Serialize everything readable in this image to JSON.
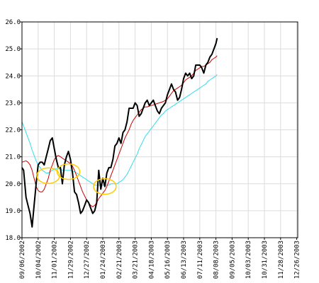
{
  "chart_data": {
    "type": "line",
    "title": "",
    "xlabel": "",
    "ylabel": "",
    "x_ticks": [
      "09/06/2002",
      "10/04/2002",
      "11/01/2002",
      "11/29/2002",
      "12/27/2002",
      "01/24/2003",
      "02/21/2003",
      "03/21/2003",
      "04/18/2003",
      "05/16/2003",
      "06/13/2003",
      "07/11/2003",
      "08/08/2003",
      "09/05/2003",
      "10/03/2003",
      "10/31/2003",
      "11/28/2003",
      "12/26/2003"
    ],
    "y_ticks": [
      18.0,
      19.0,
      20.0,
      21.0,
      22.0,
      23.0,
      24.0,
      25.0,
      26.0
    ],
    "ylim": [
      18.0,
      26.0
    ],
    "grid": true,
    "legend": "none",
    "x_unit": "week index (0 = 09/06/2002, one tick every 4 weeks)",
    "series": [
      {
        "name": "",
        "color": "#000000",
        "points": [
          [
            0,
            20.6
          ],
          [
            0.4,
            20.5
          ],
          [
            1,
            19.5
          ],
          [
            1.5,
            19.2
          ],
          [
            2,
            18.9
          ],
          [
            2.5,
            18.4
          ],
          [
            3,
            19.2
          ],
          [
            3.5,
            20.0
          ],
          [
            4,
            20.7
          ],
          [
            4.5,
            20.8
          ],
          [
            5,
            20.8
          ],
          [
            5.5,
            20.7
          ],
          [
            6,
            21.0
          ],
          [
            6.5,
            21.3
          ],
          [
            7,
            21.6
          ],
          [
            7.5,
            21.7
          ],
          [
            8,
            21.3
          ],
          [
            8.5,
            20.9
          ],
          [
            9,
            20.6
          ],
          [
            9.5,
            20.6
          ],
          [
            10,
            20.0
          ],
          [
            10.5,
            20.7
          ],
          [
            11,
            21.0
          ],
          [
            11.5,
            21.2
          ],
          [
            12,
            20.9
          ],
          [
            12.5,
            20.4
          ],
          [
            13,
            19.7
          ],
          [
            13.5,
            19.6
          ],
          [
            14,
            19.3
          ],
          [
            14.5,
            18.9
          ],
          [
            15,
            19.0
          ],
          [
            15.5,
            19.2
          ],
          [
            16,
            19.4
          ],
          [
            16.5,
            19.3
          ],
          [
            17,
            19.1
          ],
          [
            17.5,
            18.9
          ],
          [
            18,
            19.0
          ],
          [
            18.5,
            19.3
          ],
          [
            19,
            20.5
          ],
          [
            19.5,
            19.8
          ],
          [
            20,
            20.2
          ],
          [
            20.5,
            19.9
          ],
          [
            21,
            20.4
          ],
          [
            21.5,
            20.6
          ],
          [
            22,
            20.6
          ],
          [
            22.5,
            20.9
          ],
          [
            23,
            21.4
          ],
          [
            23.5,
            21.5
          ],
          [
            24,
            21.7
          ],
          [
            24.5,
            21.5
          ],
          [
            25,
            21.9
          ],
          [
            25.5,
            22.0
          ],
          [
            26,
            22.3
          ],
          [
            26.5,
            22.8
          ],
          [
            27,
            22.8
          ],
          [
            27.5,
            22.8
          ],
          [
            28,
            23.0
          ],
          [
            28.5,
            22.9
          ],
          [
            29,
            22.5
          ],
          [
            29.5,
            22.6
          ],
          [
            30,
            22.8
          ],
          [
            30.5,
            23.0
          ],
          [
            31,
            23.1
          ],
          [
            31.5,
            22.9
          ],
          [
            32,
            23.0
          ],
          [
            32.5,
            23.1
          ],
          [
            33,
            22.9
          ],
          [
            33.5,
            22.7
          ],
          [
            34,
            22.6
          ],
          [
            34.5,
            22.8
          ],
          [
            35,
            22.9
          ],
          [
            35.5,
            23.0
          ],
          [
            36,
            23.3
          ],
          [
            36.5,
            23.5
          ],
          [
            37,
            23.7
          ],
          [
            37.5,
            23.5
          ],
          [
            38,
            23.4
          ],
          [
            38.5,
            23.1
          ],
          [
            39,
            23.2
          ],
          [
            39.5,
            23.5
          ],
          [
            40,
            23.9
          ],
          [
            40.5,
            24.1
          ],
          [
            41,
            24.0
          ],
          [
            41.5,
            24.1
          ],
          [
            42,
            23.9
          ],
          [
            42.5,
            24.0
          ],
          [
            43,
            24.4
          ],
          [
            43.5,
            24.4
          ],
          [
            44,
            24.4
          ],
          [
            44.5,
            24.3
          ],
          [
            45,
            24.1
          ],
          [
            45.5,
            24.4
          ],
          [
            46,
            24.5
          ],
          [
            46.5,
            24.7
          ],
          [
            47,
            24.8
          ],
          [
            47.5,
            25.0
          ],
          [
            48,
            25.2
          ],
          [
            48.3,
            25.4
          ]
        ]
      },
      {
        "name": "",
        "color": "#cc0000",
        "points": [
          [
            0,
            20.8
          ],
          [
            1,
            20.85
          ],
          [
            1.5,
            20.8
          ],
          [
            2,
            20.7
          ],
          [
            2.5,
            20.5
          ],
          [
            3,
            20.2
          ],
          [
            3.5,
            19.9
          ],
          [
            4,
            19.75
          ],
          [
            4.5,
            19.7
          ],
          [
            5,
            19.7
          ],
          [
            5.5,
            19.8
          ],
          [
            6,
            20.0
          ],
          [
            6.5,
            20.2
          ],
          [
            7,
            20.5
          ],
          [
            7.5,
            20.7
          ],
          [
            8,
            20.9
          ],
          [
            8.5,
            21.0
          ],
          [
            9,
            21.05
          ],
          [
            9.5,
            21.0
          ],
          [
            10,
            20.95
          ],
          [
            10.5,
            20.9
          ],
          [
            11,
            20.85
          ],
          [
            11.5,
            20.8
          ],
          [
            12,
            20.75
          ],
          [
            12.5,
            20.65
          ],
          [
            13,
            20.5
          ],
          [
            13.5,
            20.3
          ],
          [
            14,
            20.1
          ],
          [
            14.5,
            19.9
          ],
          [
            15,
            19.7
          ],
          [
            15.5,
            19.55
          ],
          [
            16,
            19.4
          ],
          [
            16.5,
            19.3
          ],
          [
            17,
            19.2
          ],
          [
            17.5,
            19.15
          ],
          [
            18,
            19.2
          ],
          [
            18.5,
            19.3
          ],
          [
            19,
            19.45
          ],
          [
            19.5,
            19.55
          ],
          [
            20,
            19.65
          ],
          [
            20.5,
            19.75
          ],
          [
            21,
            19.9
          ],
          [
            21.5,
            20.1
          ],
          [
            22,
            20.3
          ],
          [
            22.5,
            20.5
          ],
          [
            23,
            20.7
          ],
          [
            23.5,
            20.9
          ],
          [
            24,
            21.1
          ],
          [
            24.5,
            21.3
          ],
          [
            25,
            21.5
          ],
          [
            25.5,
            21.7
          ],
          [
            26,
            21.85
          ],
          [
            26.5,
            22.0
          ],
          [
            27,
            22.2
          ],
          [
            27.5,
            22.35
          ],
          [
            28,
            22.45
          ],
          [
            28.5,
            22.55
          ],
          [
            29,
            22.65
          ],
          [
            29.5,
            22.75
          ],
          [
            30,
            22.8
          ],
          [
            30.5,
            22.85
          ],
          [
            31,
            22.85
          ],
          [
            32,
            22.9
          ],
          [
            33,
            22.95
          ],
          [
            34,
            23.0
          ],
          [
            35,
            23.05
          ],
          [
            35.5,
            23.1
          ],
          [
            36,
            23.15
          ],
          [
            36.5,
            23.25
          ],
          [
            37,
            23.35
          ],
          [
            37.5,
            23.45
          ],
          [
            38,
            23.5
          ],
          [
            38.5,
            23.55
          ],
          [
            39,
            23.6
          ],
          [
            39.5,
            23.65
          ],
          [
            40,
            23.75
          ],
          [
            40.5,
            23.85
          ],
          [
            41,
            23.9
          ],
          [
            41.5,
            23.95
          ],
          [
            42,
            24.0
          ],
          [
            42.5,
            24.1
          ],
          [
            43,
            24.2
          ],
          [
            43.5,
            24.25
          ],
          [
            44,
            24.3
          ],
          [
            44.5,
            24.35
          ],
          [
            45,
            24.35
          ],
          [
            45.5,
            24.4
          ],
          [
            46,
            24.45
          ],
          [
            46.5,
            24.5
          ],
          [
            47,
            24.6
          ],
          [
            47.5,
            24.65
          ],
          [
            48,
            24.7
          ],
          [
            48.3,
            24.75
          ]
        ]
      },
      {
        "name": "",
        "color": "#33dde8",
        "points": [
          [
            0,
            22.3
          ],
          [
            0.5,
            22.1
          ],
          [
            1,
            21.9
          ],
          [
            1.5,
            21.7
          ],
          [
            2,
            21.5
          ],
          [
            2.5,
            21.25
          ],
          [
            3,
            21.05
          ],
          [
            3.5,
            20.85
          ],
          [
            4,
            20.7
          ],
          [
            4.5,
            20.6
          ],
          [
            5,
            20.5
          ],
          [
            5.5,
            20.45
          ],
          [
            6,
            20.4
          ],
          [
            6.5,
            20.4
          ],
          [
            7,
            20.45
          ],
          [
            7.5,
            20.5
          ],
          [
            8,
            20.55
          ],
          [
            8.5,
            20.55
          ],
          [
            9,
            20.55
          ],
          [
            9.5,
            20.55
          ],
          [
            10,
            20.5
          ],
          [
            10.5,
            20.5
          ],
          [
            11,
            20.5
          ],
          [
            11.5,
            20.5
          ],
          [
            12,
            20.5
          ],
          [
            12.5,
            20.45
          ],
          [
            13,
            20.45
          ],
          [
            13.5,
            20.4
          ],
          [
            14,
            20.35
          ],
          [
            14.5,
            20.3
          ],
          [
            15,
            20.25
          ],
          [
            15.5,
            20.2
          ],
          [
            16,
            20.15
          ],
          [
            16.5,
            20.1
          ],
          [
            17,
            20.05
          ],
          [
            17.5,
            20.0
          ],
          [
            18,
            19.95
          ],
          [
            18.5,
            19.95
          ],
          [
            19,
            19.95
          ],
          [
            19.5,
            19.95
          ],
          [
            20,
            19.95
          ],
          [
            20.5,
            19.95
          ],
          [
            21,
            19.95
          ],
          [
            21.5,
            19.95
          ],
          [
            22,
            20.0
          ],
          [
            22.5,
            20.0
          ],
          [
            23,
            20.0
          ],
          [
            23.5,
            20.0
          ],
          [
            24,
            20.05
          ],
          [
            24.5,
            20.1
          ],
          [
            25,
            20.15
          ],
          [
            25.5,
            20.25
          ],
          [
            26,
            20.35
          ],
          [
            26.5,
            20.5
          ],
          [
            27,
            20.65
          ],
          [
            27.5,
            20.8
          ],
          [
            28,
            20.95
          ],
          [
            28.5,
            21.1
          ],
          [
            29,
            21.3
          ],
          [
            29.5,
            21.45
          ],
          [
            30,
            21.6
          ],
          [
            30.5,
            21.75
          ],
          [
            31,
            21.85
          ],
          [
            31.5,
            21.95
          ],
          [
            32,
            22.05
          ],
          [
            32.5,
            22.15
          ],
          [
            33,
            22.25
          ],
          [
            33.5,
            22.35
          ],
          [
            34,
            22.45
          ],
          [
            34.5,
            22.55
          ],
          [
            35,
            22.6
          ],
          [
            35.5,
            22.7
          ],
          [
            36,
            22.75
          ],
          [
            36.5,
            22.8
          ],
          [
            37,
            22.85
          ],
          [
            37.5,
            22.9
          ],
          [
            38,
            22.95
          ],
          [
            38.5,
            23.0
          ],
          [
            39,
            23.05
          ],
          [
            39.5,
            23.1
          ],
          [
            40,
            23.15
          ],
          [
            40.5,
            23.2
          ],
          [
            41,
            23.25
          ],
          [
            41.5,
            23.3
          ],
          [
            42,
            23.35
          ],
          [
            42.5,
            23.4
          ],
          [
            43,
            23.45
          ],
          [
            43.5,
            23.5
          ],
          [
            44,
            23.55
          ],
          [
            44.5,
            23.6
          ],
          [
            45,
            23.65
          ],
          [
            45.5,
            23.7
          ],
          [
            46,
            23.8
          ],
          [
            46.5,
            23.85
          ],
          [
            47,
            23.9
          ],
          [
            47.5,
            23.95
          ],
          [
            48,
            24.0
          ],
          [
            48.3,
            24.05
          ]
        ]
      }
    ],
    "annotations": [
      {
        "type": "ellipse",
        "color": "#ffcc00",
        "center": [
          6.5,
          20.3
        ]
      },
      {
        "type": "ellipse",
        "color": "#ffcc00",
        "center": [
          11.5,
          20.45
        ]
      },
      {
        "type": "ellipse",
        "color": "#ffcc00",
        "center": [
          20.5,
          19.9
        ]
      }
    ]
  }
}
